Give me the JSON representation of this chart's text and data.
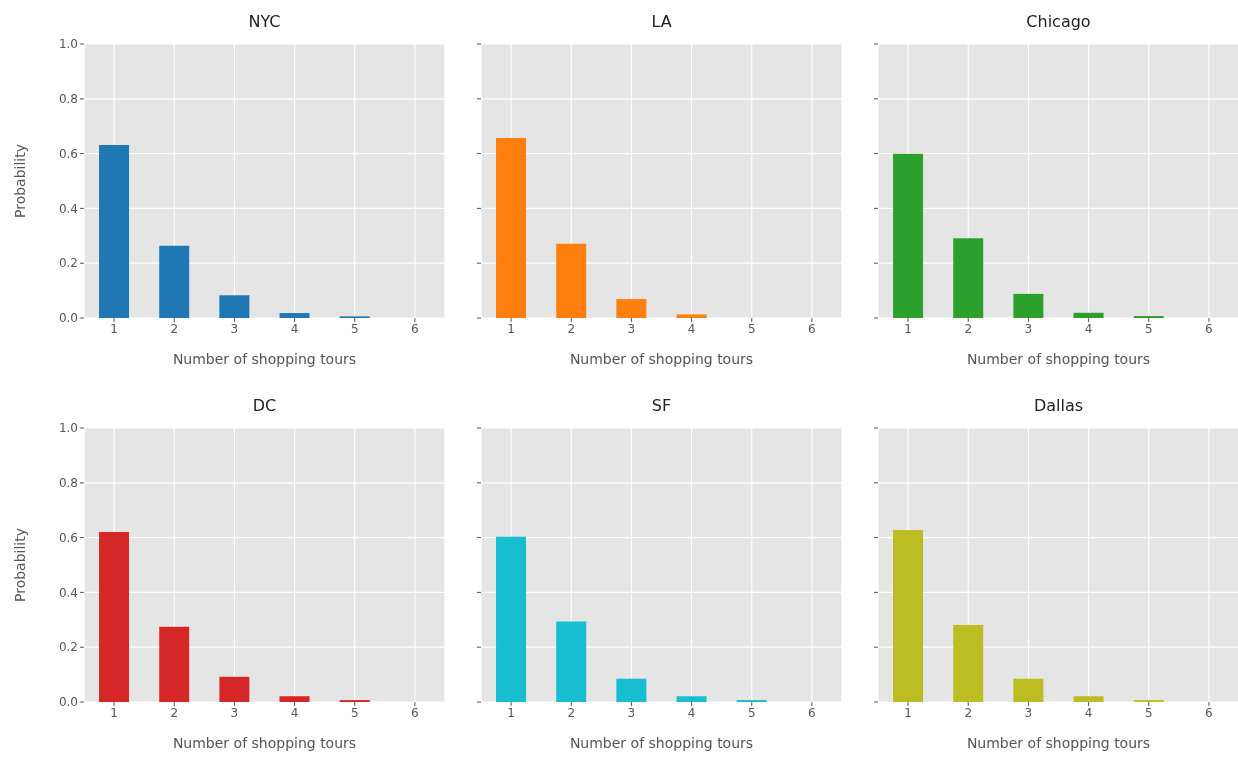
{
  "chart_data": [
    {
      "type": "bar",
      "title": "NYC",
      "categories": [
        "1",
        "2",
        "3",
        "4",
        "5",
        "6"
      ],
      "values": [
        0.631,
        0.264,
        0.083,
        0.018,
        0.006,
        0
      ],
      "color": "#1f77b4",
      "xlabel": "Number of shopping tours",
      "ylabel": "Probability",
      "ylim": [
        0,
        1
      ],
      "yticks": [
        {
          "value": 0,
          "label": "0.0"
        },
        {
          "value": 0.2,
          "label": "0.2"
        },
        {
          "value": 0.4,
          "label": "0.4"
        },
        {
          "value": 0.6,
          "label": "0.6"
        },
        {
          "value": 0.8,
          "label": "0.8"
        },
        {
          "value": 1,
          "label": "1.0"
        }
      ],
      "grid": true
    },
    {
      "type": "bar",
      "title": "LA",
      "categories": [
        "1",
        "2",
        "3",
        "4",
        "5",
        "6"
      ],
      "values": [
        0.657,
        0.271,
        0.069,
        0.013,
        0,
        0
      ],
      "color": "#ff7f0e",
      "xlabel": "Number of shopping tours",
      "ylim": [
        0,
        1
      ],
      "yticks": [
        {
          "value": 0,
          "label": null
        },
        {
          "value": 0.2,
          "label": null
        },
        {
          "value": 0.4,
          "label": null
        },
        {
          "value": 0.6,
          "label": null
        },
        {
          "value": 0.8,
          "label": null
        },
        {
          "value": 1,
          "label": null
        }
      ],
      "grid": true,
      "tick_labels": "x"
    },
    {
      "type": "bar",
      "title": "Chicago",
      "categories": [
        "1",
        "2",
        "3",
        "4",
        "5",
        "6"
      ],
      "values": [
        0.599,
        0.291,
        0.088,
        0.019,
        0.007,
        0
      ],
      "color": "#2ca02c",
      "xlabel": "Number of shopping tours",
      "ylim": [
        0,
        1
      ],
      "yticks": [
        {
          "value": 0,
          "label": null
        },
        {
          "value": 0.2,
          "label": null
        },
        {
          "value": 0.4,
          "label": null
        },
        {
          "value": 0.6,
          "label": null
        },
        {
          "value": 0.8,
          "label": null
        },
        {
          "value": 1,
          "label": null
        }
      ],
      "grid": true,
      "tick_labels": "x"
    },
    {
      "type": "bar",
      "title": "DC",
      "categories": [
        "1",
        "2",
        "3",
        "4",
        "5",
        "6"
      ],
      "values": [
        0.62,
        0.275,
        0.092,
        0.021,
        0.007,
        0
      ],
      "color": "#d62728",
      "xlabel": "Number of shopping tours",
      "ylabel": "Probability",
      "ylim": [
        0,
        1
      ],
      "yticks": [
        {
          "value": 0,
          "label": "0.0"
        },
        {
          "value": 0.2,
          "label": "0.2"
        },
        {
          "value": 0.4,
          "label": "0.4"
        },
        {
          "value": 0.6,
          "label": "0.6"
        },
        {
          "value": 0.8,
          "label": "0.8"
        },
        {
          "value": 1,
          "label": "1.0"
        }
      ],
      "grid": true
    },
    {
      "type": "bar",
      "title": "SF",
      "categories": [
        "1",
        "2",
        "3",
        "4",
        "5",
        "6"
      ],
      "values": [
        0.603,
        0.294,
        0.085,
        0.021,
        0.007,
        0
      ],
      "color": "#17becf",
      "xlabel": "Number of shopping tours",
      "ylim": [
        0,
        1
      ],
      "yticks": [
        {
          "value": 0,
          "label": null
        },
        {
          "value": 0.2,
          "label": null
        },
        {
          "value": 0.4,
          "label": null
        },
        {
          "value": 0.6,
          "label": null
        },
        {
          "value": 0.8,
          "label": null
        },
        {
          "value": 1,
          "label": null
        }
      ],
      "grid": true,
      "tick_labels": "x"
    },
    {
      "type": "bar",
      "title": "Dallas",
      "categories": [
        "1",
        "2",
        "3",
        "4",
        "5",
        "6"
      ],
      "values": [
        0.628,
        0.281,
        0.085,
        0.021,
        0.007,
        0
      ],
      "color": "#bcbd22",
      "xlabel": "Number of shopping tours",
      "ylim": [
        0,
        1
      ],
      "yticks": [
        {
          "value": 0,
          "label": null
        },
        {
          "value": 0.2,
          "label": null
        },
        {
          "value": 0.4,
          "label": null
        },
        {
          "value": 0.6,
          "label": null
        },
        {
          "value": 0.8,
          "label": null
        },
        {
          "value": 1,
          "label": null
        }
      ],
      "grid": true,
      "tick_labels": "x"
    }
  ]
}
